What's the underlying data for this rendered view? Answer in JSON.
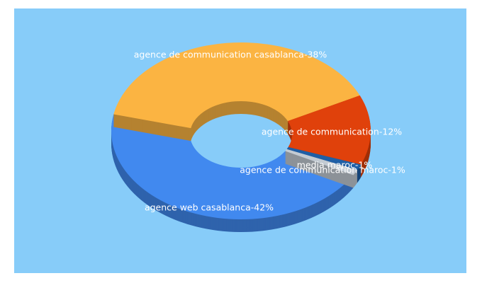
{
  "chart_data": {
    "type": "donut3d",
    "values": [
      42,
      38,
      12,
      1,
      1
    ],
    "value_labels": [
      "agence web casablanca-42%",
      "agence de communication casablanca-38%",
      "agence de communication-12%",
      "media maroc-1%",
      "agence de communication maroc-1%"
    ],
    "colors": [
      "#4189ef",
      "#fbb442",
      "#e0410b",
      "#1f5fa6",
      "#c3cbd3"
    ]
  }
}
